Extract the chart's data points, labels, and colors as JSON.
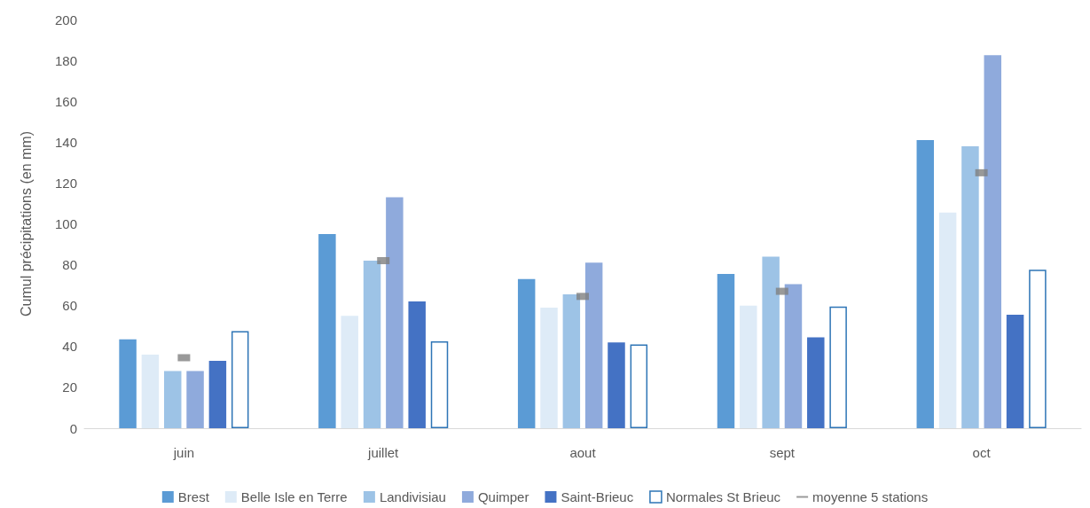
{
  "chart_data": {
    "type": "bar",
    "ylabel": "Cumul précipitations (en mm)",
    "categories": [
      "juin",
      "juillet",
      "aout",
      "sept",
      "oct"
    ],
    "series": [
      {
        "name": "Brest",
        "color": "#5b9bd5",
        "values": [
          43.5,
          95,
          73,
          75.5,
          141
        ]
      },
      {
        "name": "Belle Isle en Terre",
        "color": "#deebf7",
        "values": [
          36,
          55,
          59,
          60,
          105.5
        ]
      },
      {
        "name": "Landivisiau",
        "color": "#9dc3e6",
        "values": [
          28,
          82,
          65.5,
          84,
          138
        ]
      },
      {
        "name": "Quimper",
        "color": "#8faadc",
        "values": [
          28,
          113,
          81,
          70.5,
          182.5
        ]
      },
      {
        "name": "Saint-Brieuc",
        "color": "#4472c4",
        "values": [
          33,
          62,
          42,
          44.5,
          55.5
        ]
      },
      {
        "name": "Normales St Brieuc",
        "color": "#2e75b6",
        "line_style": "solid",
        "values": [
          47.5,
          42.5,
          41,
          59.5,
          77.5
        ]
      },
      {
        "name": "moyenne 5 stations",
        "type": "scatter",
        "color": "#7f7f7f",
        "x": [
          "juin",
          "juillet",
          "aout",
          "sept",
          "oct"
        ],
        "values": [
          34.5,
          82,
          64.5,
          67,
          125
        ]
      }
    ],
    "ylim": [
      0,
      200
    ],
    "yticks": [
      0,
      20,
      40,
      60,
      80,
      100,
      120,
      140,
      160,
      180,
      200
    ],
    "grid": false,
    "legend": "bottom"
  }
}
